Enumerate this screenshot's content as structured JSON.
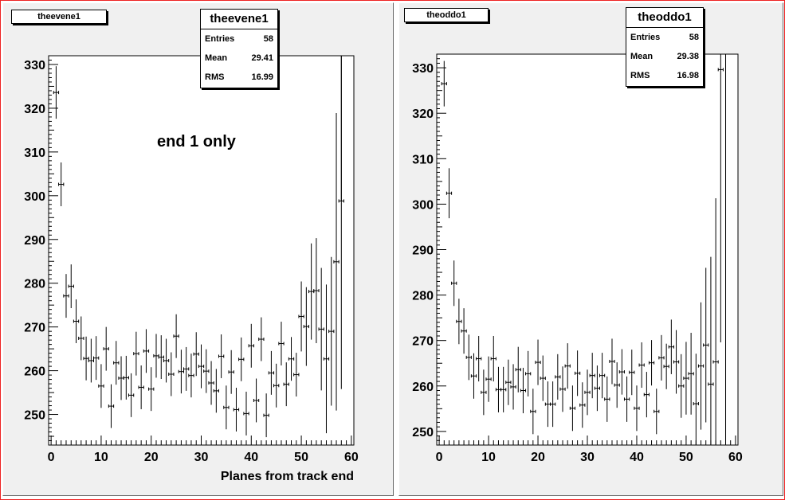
{
  "chart_data": [
    {
      "type": "scatter",
      "title": "theevene1",
      "xlabel": "Planes from track end",
      "ylabel": "",
      "xlim": [
        -0.5,
        60.5
      ],
      "ylim": [
        243,
        332
      ],
      "xticks": [
        0,
        10,
        20,
        30,
        40,
        50,
        60
      ],
      "yticks": [
        250,
        260,
        270,
        280,
        290,
        300,
        310,
        320,
        330
      ],
      "annotation": "end 1 only",
      "stats": {
        "name": "theevene1",
        "entries_label": "Entries",
        "entries": "58",
        "mean_label": "Mean",
        "mean": "29.41",
        "rms_label": "RMS",
        "rms": "16.99"
      },
      "points": [
        {
          "x": 1,
          "y": 323.6,
          "err": 6
        },
        {
          "x": 2,
          "y": 302.6,
          "err": 5
        },
        {
          "x": 3,
          "y": 277.1,
          "err": 5
        },
        {
          "x": 4,
          "y": 279.3,
          "err": 5
        },
        {
          "x": 5,
          "y": 271.3,
          "err": 5
        },
        {
          "x": 6,
          "y": 267.4,
          "err": 5
        },
        {
          "x": 7,
          "y": 262.8,
          "err": 5
        },
        {
          "x": 8,
          "y": 262.3,
          "err": 5
        },
        {
          "x": 9,
          "y": 262.9,
          "err": 5
        },
        {
          "x": 10,
          "y": 256.5,
          "err": 5
        },
        {
          "x": 11,
          "y": 265.0,
          "err": 5
        },
        {
          "x": 12,
          "y": 251.9,
          "err": 5
        },
        {
          "x": 13,
          "y": 261.8,
          "err": 5
        },
        {
          "x": 14,
          "y": 258.3,
          "err": 5
        },
        {
          "x": 15,
          "y": 258.4,
          "err": 5
        },
        {
          "x": 16,
          "y": 254.4,
          "err": 5
        },
        {
          "x": 17,
          "y": 263.9,
          "err": 5
        },
        {
          "x": 18,
          "y": 256.2,
          "err": 5
        },
        {
          "x": 19,
          "y": 264.5,
          "err": 5
        },
        {
          "x": 20,
          "y": 255.8,
          "err": 5
        },
        {
          "x": 21,
          "y": 263.4,
          "err": 5
        },
        {
          "x": 22,
          "y": 263.1,
          "err": 5
        },
        {
          "x": 23,
          "y": 262.3,
          "err": 5
        },
        {
          "x": 24,
          "y": 259.2,
          "err": 5
        },
        {
          "x": 25,
          "y": 267.9,
          "err": 5
        },
        {
          "x": 26,
          "y": 259.8,
          "err": 5
        },
        {
          "x": 27,
          "y": 260.4,
          "err": 5
        },
        {
          "x": 28,
          "y": 258.9,
          "err": 5
        },
        {
          "x": 29,
          "y": 263.8,
          "err": 5
        },
        {
          "x": 30,
          "y": 261.0,
          "err": 5
        },
        {
          "x": 31,
          "y": 259.9,
          "err": 5
        },
        {
          "x": 32,
          "y": 257.2,
          "err": 5
        },
        {
          "x": 33,
          "y": 255.4,
          "err": 5
        },
        {
          "x": 34,
          "y": 263.3,
          "err": 5
        },
        {
          "x": 35,
          "y": 251.6,
          "err": 5
        },
        {
          "x": 36,
          "y": 259.7,
          "err": 5
        },
        {
          "x": 37,
          "y": 251.1,
          "err": 5
        },
        {
          "x": 38,
          "y": 262.6,
          "err": 5
        },
        {
          "x": 39,
          "y": 250.2,
          "err": 5
        },
        {
          "x": 40,
          "y": 265.7,
          "err": 5
        },
        {
          "x": 41,
          "y": 253.2,
          "err": 5
        },
        {
          "x": 42,
          "y": 267.2,
          "err": 5
        },
        {
          "x": 43,
          "y": 249.8,
          "err": 5
        },
        {
          "x": 44,
          "y": 259.5,
          "err": 5
        },
        {
          "x": 45,
          "y": 256.6,
          "err": 5
        },
        {
          "x": 46,
          "y": 266.2,
          "err": 5
        },
        {
          "x": 47,
          "y": 256.9,
          "err": 5
        },
        {
          "x": 48,
          "y": 262.7,
          "err": 5
        },
        {
          "x": 49,
          "y": 259.1,
          "err": 5
        },
        {
          "x": 50,
          "y": 272.4,
          "err": 8
        },
        {
          "x": 51,
          "y": 270.1,
          "err": 9
        },
        {
          "x": 52,
          "y": 278.1,
          "err": 11
        },
        {
          "x": 53,
          "y": 278.3,
          "err": 12
        },
        {
          "x": 54,
          "y": 269.5,
          "err": 14
        },
        {
          "x": 55,
          "y": 262.7,
          "err": 17
        },
        {
          "x": 56,
          "y": 269.0,
          "err": 17
        },
        {
          "x": 57,
          "y": 284.9,
          "err": 34
        },
        {
          "x": 58,
          "y": 298.8,
          "err": 43
        }
      ],
      "tall_bar": {
        "x": 58,
        "y": 332,
        "err": 0
      }
    },
    {
      "type": "scatter",
      "title": "theoddo1",
      "xlabel": "",
      "ylabel": "",
      "xlim": [
        -0.5,
        60.5
      ],
      "ylim": [
        247,
        333
      ],
      "xticks": [
        0,
        10,
        20,
        30,
        40,
        50,
        60
      ],
      "yticks": [
        250,
        260,
        270,
        280,
        290,
        300,
        310,
        320,
        330
      ],
      "stats": {
        "name": "theoddo1",
        "entries_label": "Entries",
        "entries": "58",
        "mean_label": "Mean",
        "mean": "29.38",
        "rms_label": "RMS",
        "rms": "16.98"
      },
      "points": [
        {
          "x": 1,
          "y": 326.5,
          "err": 5
        },
        {
          "x": 2,
          "y": 302.4,
          "err": 5.5
        },
        {
          "x": 3,
          "y": 282.6,
          "err": 5
        },
        {
          "x": 4,
          "y": 274.2,
          "err": 5
        },
        {
          "x": 5,
          "y": 272.1,
          "err": 5
        },
        {
          "x": 6,
          "y": 266.3,
          "err": 5
        },
        {
          "x": 7,
          "y": 262.2,
          "err": 5
        },
        {
          "x": 8,
          "y": 266.0,
          "err": 5
        },
        {
          "x": 9,
          "y": 258.6,
          "err": 5
        },
        {
          "x": 10,
          "y": 261.5,
          "err": 5
        },
        {
          "x": 11,
          "y": 266.0,
          "err": 5
        },
        {
          "x": 12,
          "y": 259.2,
          "err": 5
        },
        {
          "x": 13,
          "y": 259.2,
          "err": 5
        },
        {
          "x": 14,
          "y": 260.8,
          "err": 5
        },
        {
          "x": 15,
          "y": 259.8,
          "err": 5
        },
        {
          "x": 16,
          "y": 263.6,
          "err": 5
        },
        {
          "x": 17,
          "y": 259.0,
          "err": 5
        },
        {
          "x": 18,
          "y": 262.7,
          "err": 5
        },
        {
          "x": 19,
          "y": 254.4,
          "err": 5
        },
        {
          "x": 20,
          "y": 265.2,
          "err": 5
        },
        {
          "x": 21,
          "y": 261.7,
          "err": 5
        },
        {
          "x": 22,
          "y": 256.0,
          "err": 5
        },
        {
          "x": 23,
          "y": 256.0,
          "err": 5
        },
        {
          "x": 24,
          "y": 262.0,
          "err": 5
        },
        {
          "x": 25,
          "y": 259.3,
          "err": 5
        },
        {
          "x": 26,
          "y": 264.4,
          "err": 5
        },
        {
          "x": 27,
          "y": 255.1,
          "err": 5
        },
        {
          "x": 28,
          "y": 262.8,
          "err": 5
        },
        {
          "x": 29,
          "y": 255.8,
          "err": 5
        },
        {
          "x": 30,
          "y": 258.6,
          "err": 5
        },
        {
          "x": 31,
          "y": 262.3,
          "err": 5
        },
        {
          "x": 32,
          "y": 259.5,
          "err": 5
        },
        {
          "x": 33,
          "y": 262.3,
          "err": 5
        },
        {
          "x": 34,
          "y": 257.1,
          "err": 5
        },
        {
          "x": 35,
          "y": 265.4,
          "err": 5
        },
        {
          "x": 36,
          "y": 260.2,
          "err": 5
        },
        {
          "x": 37,
          "y": 263.1,
          "err": 5
        },
        {
          "x": 38,
          "y": 257.1,
          "err": 5
        },
        {
          "x": 39,
          "y": 263.0,
          "err": 5
        },
        {
          "x": 40,
          "y": 255.1,
          "err": 5
        },
        {
          "x": 41,
          "y": 264.6,
          "err": 5
        },
        {
          "x": 42,
          "y": 258.1,
          "err": 5
        },
        {
          "x": 43,
          "y": 265.1,
          "err": 5
        },
        {
          "x": 44,
          "y": 254.4,
          "err": 5
        },
        {
          "x": 45,
          "y": 266.2,
          "err": 5
        },
        {
          "x": 46,
          "y": 264.3,
          "err": 5
        },
        {
          "x": 47,
          "y": 268.6,
          "err": 6
        },
        {
          "x": 48,
          "y": 265.3,
          "err": 7
        },
        {
          "x": 49,
          "y": 260.0,
          "err": 7
        },
        {
          "x": 50,
          "y": 261.7,
          "err": 8
        },
        {
          "x": 51,
          "y": 262.7,
          "err": 9
        },
        {
          "x": 52,
          "y": 256.1,
          "err": 11
        },
        {
          "x": 53,
          "y": 264.4,
          "err": 14
        },
        {
          "x": 54,
          "y": 269.0,
          "err": 17
        },
        {
          "x": 55,
          "y": 260.4,
          "err": 28
        },
        {
          "x": 56,
          "y": 265.3,
          "err": 36
        },
        {
          "x": 57,
          "y": 329.6,
          "err": 60
        },
        {
          "x": 58,
          "y": null,
          "err": 0
        }
      ]
    }
  ]
}
